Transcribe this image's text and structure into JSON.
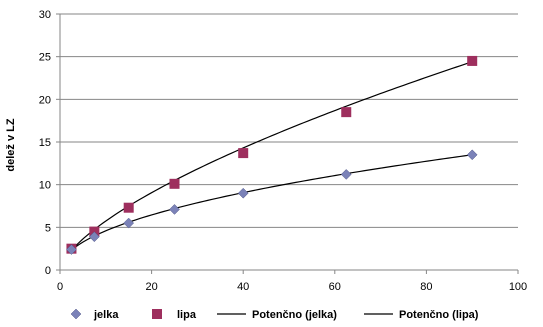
{
  "chart_data": {
    "type": "scatter",
    "title": "",
    "xlabel": "",
    "ylabel": "delež v LZ",
    "xlim": [
      0,
      100
    ],
    "ylim": [
      0,
      30
    ],
    "xticks": [
      0,
      20,
      40,
      60,
      80,
      100
    ],
    "yticks": [
      0,
      5,
      10,
      15,
      20,
      25,
      30
    ],
    "grid": "horizontal",
    "legend_position": "bottom",
    "series": [
      {
        "name": "jelka",
        "marker": "diamond",
        "color": "#7b82b8",
        "x": [
          2.5,
          7.5,
          15,
          25,
          40,
          62.5,
          90
        ],
        "y": [
          2.4,
          3.9,
          5.5,
          7.1,
          9.0,
          11.2,
          13.5
        ]
      },
      {
        "name": "lipa",
        "marker": "square",
        "color": "#9e2f5e",
        "x": [
          2.5,
          7.5,
          15,
          25,
          40,
          62.5,
          90
        ],
        "y": [
          2.5,
          4.5,
          7.3,
          10.1,
          13.7,
          18.5,
          24.5
        ]
      }
    ],
    "trendlines": [
      {
        "name": "Potenčno (jelka)",
        "type": "power",
        "of_series": "jelka",
        "color": "#000000",
        "coef": 1.4828,
        "exponent": 0.4909
      },
      {
        "name": "Potenčno (lipa)",
        "type": "power",
        "of_series": "lipa",
        "color": "#000000",
        "coef": 1.2589,
        "exponent": 0.6588
      }
    ]
  }
}
